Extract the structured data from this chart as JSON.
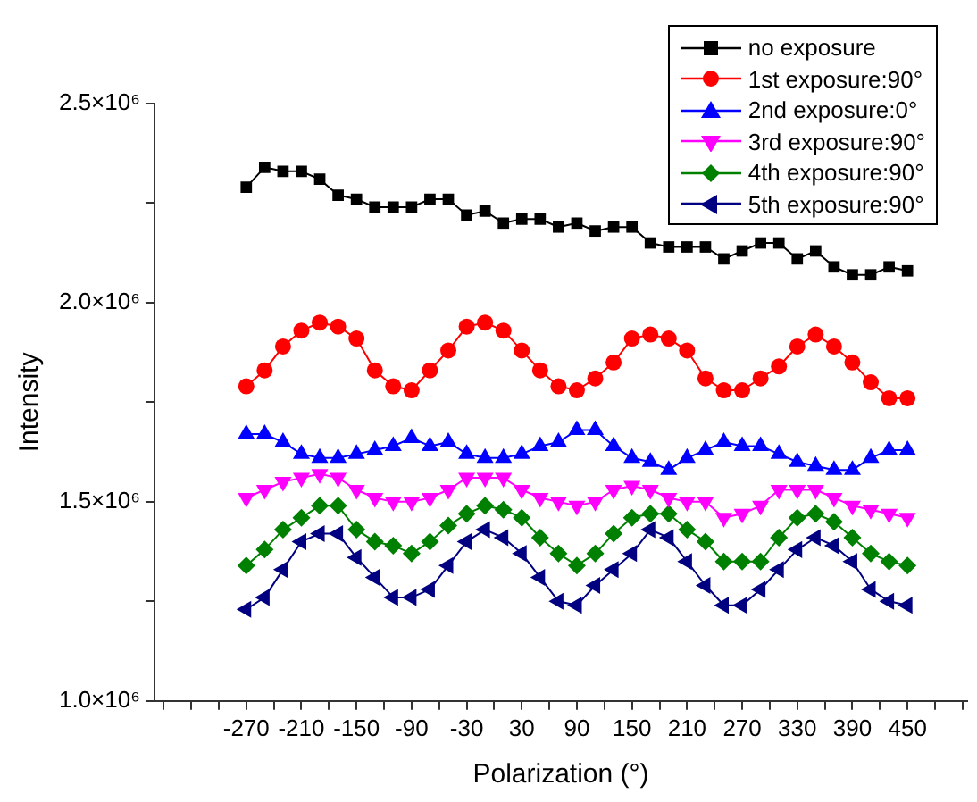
{
  "chart_data": {
    "type": "line",
    "xlabel": "Polarization (°)",
    "ylabel": "Intensity",
    "x": [
      -270,
      -250,
      -230,
      -210,
      -190,
      -170,
      -150,
      -130,
      -110,
      -90,
      -70,
      -50,
      -30,
      -10,
      10,
      30,
      50,
      70,
      90,
      110,
      130,
      150,
      170,
      190,
      210,
      230,
      250,
      270,
      290,
      310,
      330,
      350,
      370,
      390,
      410,
      430,
      450
    ],
    "xlim": [
      -370,
      515
    ],
    "xticks": [
      {
        "value": -360,
        "label": null
      },
      {
        "value": -330,
        "label": null
      },
      {
        "value": -300,
        "label": null
      },
      -270,
      {
        "value": -240,
        "label": null
      },
      -210,
      {
        "value": -180,
        "label": null
      },
      -150,
      {
        "value": -120,
        "label": null
      },
      -90,
      {
        "value": -60,
        "label": null
      },
      -30,
      {
        "value": 0,
        "label": null
      },
      30,
      {
        "value": 60,
        "label": null
      },
      90,
      {
        "value": 120,
        "label": null
      },
      150,
      {
        "value": 180,
        "label": null
      },
      210,
      {
        "value": 240,
        "label": null
      },
      270,
      {
        "value": 300,
        "label": null
      },
      330,
      {
        "value": 360,
        "label": null
      },
      390,
      {
        "value": 420,
        "label": null
      },
      450,
      {
        "value": 480,
        "label": null
      },
      {
        "value": 510,
        "label": null
      }
    ],
    "ylim": [
      1000000,
      2500000
    ],
    "yticks": [
      {
        "value": 1000000,
        "label": "1.0×10⁶"
      },
      {
        "value": 1250000,
        "label": null
      },
      {
        "value": 1500000,
        "label": "1.5×10⁶"
      },
      {
        "value": 1750000,
        "label": null
      },
      {
        "value": 2000000,
        "label": "2.0×10⁶"
      },
      {
        "value": 2250000,
        "label": null
      },
      {
        "value": 2500000,
        "label": "2.5×10⁶"
      }
    ],
    "grid": false,
    "legend": "top right",
    "line_style": "solid",
    "series": [
      {
        "name": "no exposure",
        "color": "#000000",
        "marker": "square",
        "values": [
          2290000,
          2340000,
          2330000,
          2330000,
          2310000,
          2270000,
          2260000,
          2240000,
          2240000,
          2240000,
          2260000,
          2260000,
          2220000,
          2230000,
          2200000,
          2210000,
          2210000,
          2190000,
          2200000,
          2180000,
          2190000,
          2190000,
          2150000,
          2140000,
          2140000,
          2140000,
          2110000,
          2130000,
          2150000,
          2150000,
          2110000,
          2130000,
          2090000,
          2070000,
          2070000,
          2090000,
          2080000
        ]
      },
      {
        "name": "1st exposure:90°",
        "color": "#ff0000",
        "marker": "circle",
        "values": [
          1790000,
          1830000,
          1890000,
          1930000,
          1950000,
          1940000,
          1910000,
          1830000,
          1790000,
          1780000,
          1830000,
          1880000,
          1940000,
          1950000,
          1930000,
          1880000,
          1830000,
          1790000,
          1780000,
          1810000,
          1850000,
          1910000,
          1920000,
          1910000,
          1880000,
          1810000,
          1780000,
          1780000,
          1810000,
          1840000,
          1890000,
          1920000,
          1890000,
          1850000,
          1800000,
          1760000,
          1760000
        ]
      },
      {
        "name": "2nd exposure:0°",
        "color": "#0000ff",
        "marker": "triangle",
        "values": [
          1670000,
          1670000,
          1650000,
          1620000,
          1610000,
          1610000,
          1620000,
          1630000,
          1640000,
          1660000,
          1640000,
          1650000,
          1620000,
          1610000,
          1610000,
          1620000,
          1640000,
          1650000,
          1680000,
          1680000,
          1640000,
          1610000,
          1600000,
          1580000,
          1610000,
          1630000,
          1650000,
          1640000,
          1640000,
          1620000,
          1600000,
          1590000,
          1580000,
          1580000,
          1610000,
          1630000,
          1630000
        ]
      },
      {
        "name": "3rd exposure:90°",
        "color": "#ff00ff",
        "marker": "triangle-down",
        "values": [
          1510000,
          1530000,
          1550000,
          1560000,
          1570000,
          1560000,
          1530000,
          1510000,
          1500000,
          1500000,
          1510000,
          1530000,
          1560000,
          1560000,
          1560000,
          1530000,
          1510000,
          1500000,
          1490000,
          1500000,
          1530000,
          1540000,
          1530000,
          1510000,
          1500000,
          1500000,
          1460000,
          1470000,
          1490000,
          1530000,
          1530000,
          1530000,
          1510000,
          1490000,
          1480000,
          1470000,
          1460000
        ]
      },
      {
        "name": "4th exposure:90°",
        "color": "#008000",
        "marker": "diamond",
        "values": [
          1340000,
          1380000,
          1430000,
          1460000,
          1490000,
          1490000,
          1430000,
          1400000,
          1390000,
          1370000,
          1400000,
          1440000,
          1470000,
          1490000,
          1480000,
          1460000,
          1410000,
          1370000,
          1340000,
          1370000,
          1420000,
          1460000,
          1470000,
          1470000,
          1430000,
          1400000,
          1350000,
          1350000,
          1350000,
          1410000,
          1460000,
          1470000,
          1450000,
          1410000,
          1370000,
          1350000,
          1340000
        ]
      },
      {
        "name": "5th exposure:90°",
        "color": "#000080",
        "marker": "triangle-left",
        "values": [
          1230000,
          1260000,
          1330000,
          1400000,
          1420000,
          1420000,
          1360000,
          1310000,
          1260000,
          1260000,
          1280000,
          1340000,
          1400000,
          1430000,
          1410000,
          1370000,
          1310000,
          1250000,
          1240000,
          1290000,
          1330000,
          1370000,
          1430000,
          1410000,
          1350000,
          1290000,
          1240000,
          1240000,
          1280000,
          1330000,
          1380000,
          1410000,
          1390000,
          1350000,
          1280000,
          1250000,
          1240000
        ]
      }
    ]
  }
}
